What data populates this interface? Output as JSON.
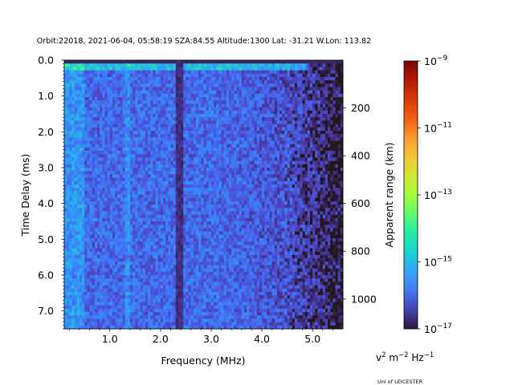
{
  "chart_data": {
    "type": "heatmap",
    "title": "Orbit:22018, 2021-06-04, 05:58:19 SZA:84.55 Altitude:1300 Lat: -31.21 W.Lon: 113.82",
    "xlabel": "Frequency (MHz)",
    "ylabel": "Time Delay (ms)",
    "y2label": "Apparent range (km)",
    "xlim": [
      0.1,
      5.6
    ],
    "ylim": [
      7.5,
      0.0
    ],
    "xticks": [
      1.0,
      2.0,
      3.0,
      4.0,
      5.0
    ],
    "xtick_labels": [
      "1.0",
      "2.0",
      "3.0",
      "4.0",
      "5.0"
    ],
    "yticks": [
      0.0,
      1.0,
      2.0,
      3.0,
      4.0,
      5.0,
      6.0,
      7.0
    ],
    "ytick_labels": [
      "0.0",
      "1.0",
      "2.0",
      "3.0",
      "4.0",
      "5.0",
      "6.0",
      "7.0"
    ],
    "y2ticks": [
      200,
      400,
      600,
      800,
      1000
    ],
    "y2tick_labels": [
      "200",
      "400",
      "600",
      "800",
      "1000"
    ],
    "km_per_ms": 150,
    "colorbar": {
      "scale": "log",
      "range": [
        1e-17,
        1e-09
      ],
      "colormap": "turbo",
      "ticks": [
        -17,
        -15,
        -13,
        -11,
        -9
      ],
      "tick_labels": [
        {
          "base": "10",
          "exp": "−17"
        },
        {
          "base": "10",
          "exp": "−15"
        },
        {
          "base": "10",
          "exp": "−13"
        },
        {
          "base": "10",
          "exp": "−11"
        },
        {
          "base": "10",
          "exp": "−9"
        }
      ],
      "units": {
        "v": "v",
        "v_exp": "2",
        "m": " m",
        "m_exp": "−2",
        "hz": " Hz",
        "hz_exp": "−1"
      }
    },
    "features": {
      "dark_vertical_line_mhz": 2.38,
      "bright_band_delay_ms": 0.15,
      "bright_low_freq_mhz": [
        0.1,
        0.5
      ],
      "bright_column_mhz": 1.35,
      "dim_high_freq_start_mhz": 4.4,
      "typical_log10_value": -16.0
    }
  },
  "credit": "Uni of LEICESTER"
}
